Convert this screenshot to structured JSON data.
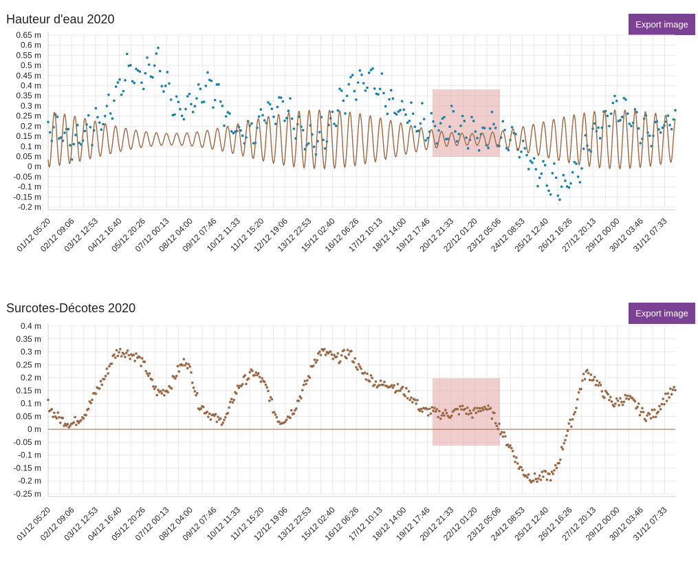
{
  "export_label": "Export image",
  "colors": {
    "water_points": "#1580a8",
    "tide_line": "#9b6846",
    "surge_points": "#9b6846",
    "zero_line": "#9b6846",
    "button": "#7b4192",
    "watermark_box": "#e3a6a6",
    "grid": "#e8e8e8"
  },
  "x_tick_labels": [
    "01/12 05:20",
    "02/12 09:06",
    "03/12 12:53",
    "04/12 16:40",
    "05/12 20:26",
    "07/12 00:13",
    "08/12 04:00",
    "09/12 07:46",
    "10/12 11:33",
    "11/12 15:20",
    "12/12 19:06",
    "13/12 22:53",
    "15/12 02:40",
    "16/12 06:26",
    "17/12 10:13",
    "18/12 14:00",
    "19/12 17:46",
    "20/12 21:33",
    "22/12 01:20",
    "23/12 05:06",
    "24/12 08:53",
    "25/12 12:40",
    "26/12 16:26",
    "27/12 20:13",
    "29/12 00:00",
    "30/12 03:46",
    "31/12 07:33"
  ],
  "chart_data": [
    {
      "type": "scatter",
      "title": "Hauteur d'eau 2020",
      "y_unit": "m",
      "ylim": [
        -0.2,
        0.65
      ],
      "y_ticks": [
        "0.65 m",
        "0.6 m",
        "0.55 m",
        "0.5 m",
        "0.45 m",
        "0.4 m",
        "0.35 m",
        "0.3 m",
        "0.25 m",
        "0.2 m",
        "0.15 m",
        "0.1 m",
        "0.05 m",
        "0 m",
        "-0.05 m",
        "-0.1 m",
        "-0.15 m",
        "-0.2 m"
      ],
      "grid": true,
      "series": [
        {
          "style": "points",
          "color": "#1580a8",
          "x_day": [
            1.2,
            1.5,
            2.0,
            2.5,
            3.0,
            3.5,
            4.0,
            4.3,
            4.6,
            5.0,
            5.3,
            5.6,
            6.0,
            6.5,
            7.0,
            7.5,
            8.0,
            8.5,
            9.0,
            9.5,
            10.0,
            10.5,
            11.0,
            11.5,
            12.0,
            12.4,
            12.8,
            13.2,
            13.7,
            14.0,
            14.5,
            15.0,
            15.5,
            16.0,
            16.5,
            17.0,
            17.5,
            18.0,
            18.5,
            19.0,
            19.5,
            20.0,
            20.5,
            21.0,
            21.5,
            22.0,
            22.5,
            23.0,
            23.5,
            24.0,
            24.5,
            25.0,
            25.5,
            26.0,
            26.5,
            27.0,
            27.5,
            28.0,
            28.5,
            29.0,
            29.5,
            30.0,
            30.5,
            31.0,
            31.5,
            32.0
          ],
          "y": [
            0.2,
            0.22,
            0.15,
            0.12,
            0.18,
            0.2,
            0.25,
            0.3,
            0.38,
            0.45,
            0.5,
            0.42,
            0.48,
            0.52,
            0.4,
            0.3,
            0.25,
            0.35,
            0.4,
            0.38,
            0.22,
            0.18,
            0.15,
            0.22,
            0.28,
            0.3,
            0.32,
            0.25,
            0.18,
            0.1,
            0.15,
            0.2,
            0.3,
            0.38,
            0.4,
            0.42,
            0.38,
            0.3,
            0.28,
            0.25,
            0.22,
            0.2,
            0.18,
            0.22,
            0.2,
            0.18,
            0.15,
            0.2,
            0.15,
            0.12,
            0.1,
            0.0,
            -0.05,
            -0.08,
            -0.1,
            -0.05,
            0.05,
            0.15,
            0.25,
            0.28,
            0.3,
            0.22,
            0.2,
            0.18,
            0.2,
            0.22
          ]
        },
        {
          "style": "line",
          "color": "#9b6846",
          "tidal_range": [
            -0.03,
            0.26
          ]
        }
      ]
    },
    {
      "type": "scatter",
      "title": "Surcotes-Décotes 2020",
      "y_unit": "m",
      "ylim": [
        -0.25,
        0.4
      ],
      "y_ticks": [
        "0.4 m",
        "0.35 m",
        "0.3 m",
        "0.25 m",
        "0.2 m",
        "0.15 m",
        "0.1 m",
        "0.05 m",
        "0 m",
        "-0.05 m",
        "-0.1 m",
        "-0.15 m",
        "-0.2 m",
        "-0.25 m"
      ],
      "grid": true,
      "series": [
        {
          "style": "points",
          "color": "#9b6846",
          "x_day": [
            1.2,
            1.5,
            1.8,
            2.1,
            2.4,
            2.7,
            3.0,
            3.3,
            3.6,
            4.0,
            4.3,
            4.6,
            5.0,
            5.3,
            5.6,
            6.0,
            6.3,
            6.6,
            7.0,
            7.3,
            7.6,
            8.0,
            8.3,
            8.6,
            9.0,
            9.3,
            9.6,
            10.0,
            10.3,
            10.6,
            11.0,
            11.3,
            11.6,
            12.0,
            12.3,
            12.6,
            13.0,
            13.3,
            13.6,
            14.0,
            14.3,
            14.6,
            15.0,
            15.3,
            15.6,
            16.0,
            16.3,
            16.6,
            17.0,
            17.3,
            17.6,
            18.0,
            18.3,
            18.6,
            19.0,
            19.3,
            19.6,
            20.0,
            20.3,
            20.6,
            21.0,
            21.3,
            21.6,
            22.0,
            22.3,
            22.6,
            23.0,
            23.3,
            23.6,
            24.0,
            24.3,
            24.6,
            25.0,
            25.3,
            25.6,
            26.0,
            26.3,
            26.6,
            27.0,
            27.3,
            27.6,
            28.0,
            28.3,
            28.6,
            29.0,
            29.3,
            29.6,
            30.0,
            30.3,
            30.6,
            31.0,
            31.3,
            31.6,
            32.0
          ],
          "y": [
            0.1,
            0.06,
            0.04,
            0.03,
            0.02,
            0.04,
            0.06,
            0.1,
            0.15,
            0.2,
            0.26,
            0.3,
            0.3,
            0.29,
            0.28,
            0.24,
            0.18,
            0.14,
            0.15,
            0.18,
            0.23,
            0.27,
            0.2,
            0.1,
            0.07,
            0.05,
            0.03,
            0.05,
            0.12,
            0.17,
            0.2,
            0.22,
            0.2,
            0.15,
            0.07,
            0.03,
            0.05,
            0.08,
            0.13,
            0.2,
            0.27,
            0.3,
            0.29,
            0.27,
            0.28,
            0.3,
            0.26,
            0.22,
            0.2,
            0.18,
            0.17,
            0.18,
            0.16,
            0.15,
            0.13,
            0.1,
            0.07,
            0.07,
            0.06,
            0.06,
            0.06,
            0.07,
            0.08,
            0.06,
            0.07,
            0.09,
            0.06,
            0.02,
            -0.03,
            -0.08,
            -0.14,
            -0.17,
            -0.19,
            -0.19,
            -0.18,
            -0.18,
            -0.12,
            -0.03,
            0.05,
            0.15,
            0.22,
            0.2,
            0.16,
            0.13,
            0.1,
            0.11,
            0.12,
            0.1,
            0.07,
            0.05,
            0.06,
            0.1,
            0.13,
            0.15
          ]
        }
      ],
      "reference_line_y": 0
    }
  ]
}
